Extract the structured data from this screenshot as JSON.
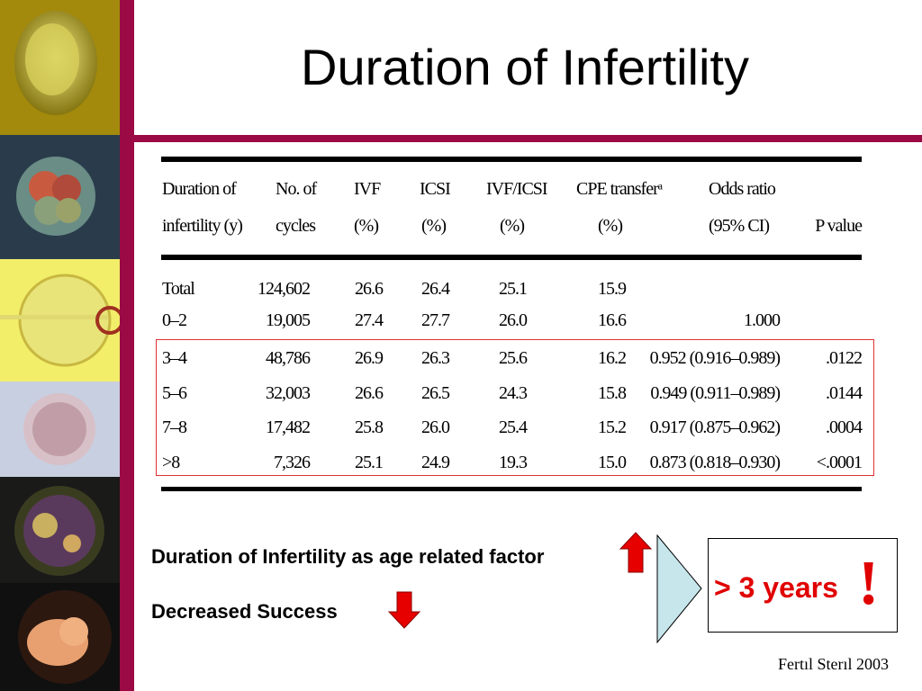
{
  "title": "Duration of Infertility",
  "table": {
    "headers": [
      [
        "Duration of",
        "infertility (y)"
      ],
      [
        "No. of",
        "cycles"
      ],
      [
        "IVF",
        "(%)"
      ],
      [
        "ICSI",
        "(%)"
      ],
      [
        "IVF/ICSI",
        "(%)"
      ],
      [
        "CPE transferᵃ",
        "(%)"
      ],
      [
        "Odds ratio",
        "(95% CI)"
      ],
      [
        "",
        "P value"
      ]
    ],
    "rows": [
      [
        "Total",
        "124,602",
        "26.6",
        "26.4",
        "25.1",
        "15.9",
        "",
        ""
      ],
      [
        "0–2",
        "19,005",
        "27.4",
        "27.7",
        "26.0",
        "16.6",
        "1.000",
        ""
      ],
      [
        "3–4",
        "48,786",
        "26.9",
        "26.3",
        "25.6",
        "16.2",
        "0.952 (0.916–0.989)",
        ".0122"
      ],
      [
        "5–6",
        "32,003",
        "26.6",
        "26.5",
        "24.3",
        "15.8",
        "0.949 (0.911–0.989)",
        ".0144"
      ],
      [
        "7–8",
        "17,482",
        "25.8",
        "26.0",
        "25.4",
        "15.2",
        "0.917 (0.875–0.962)",
        ".0004"
      ],
      [
        ">8",
        "7,326",
        "25.1",
        "24.9",
        "19.3",
        "15.0",
        "0.873 (0.818–0.930)",
        "<.0001"
      ]
    ]
  },
  "notes": {
    "age_factor": "Duration of Infertility as age related factor",
    "decreased": "Decreased Success",
    "highlight": "> 3 years",
    "exclaim": "!"
  },
  "source": "Fertıl Sterıl 2003",
  "colors": {
    "accent_bar": "#9b0a45",
    "highlight_red": "#e00000",
    "arrow_red": "#e60000",
    "chevron_fill": "#c6e6ec"
  }
}
